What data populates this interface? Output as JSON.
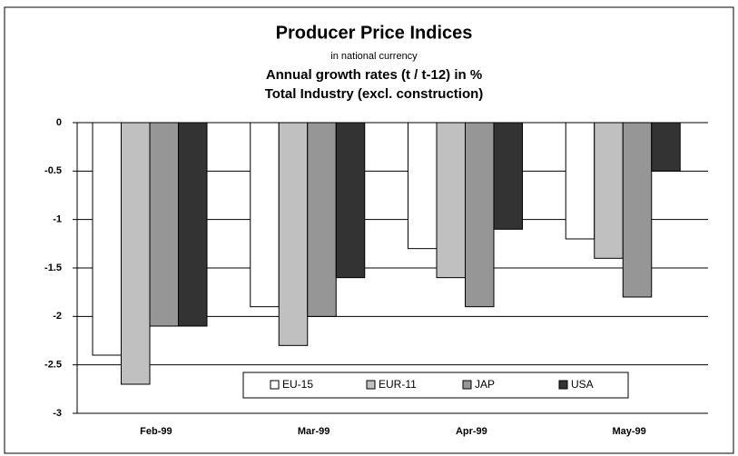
{
  "chart_data": {
    "type": "bar",
    "title": "Producer Price Indices",
    "subtitles": [
      "in national currency",
      "Annual growth rates (t / t-12) in %",
      "Total Industry (excl. construction)"
    ],
    "categories": [
      "Feb-99",
      "Mar-99",
      "Apr-99",
      "May-99"
    ],
    "series": [
      {
        "name": "EU-15",
        "color": "#ffffff",
        "values": [
          -2.4,
          -1.9,
          -1.3,
          -1.2
        ]
      },
      {
        "name": "EUR-11",
        "color": "#c0c0c0",
        "values": [
          -2.7,
          -2.3,
          -1.6,
          -1.4
        ]
      },
      {
        "name": "JAP",
        "color": "#969696",
        "values": [
          -2.1,
          -2.0,
          -1.9,
          -1.8
        ]
      },
      {
        "name": "USA",
        "color": "#333333",
        "values": [
          -2.1,
          -1.6,
          -1.1,
          -0.5
        ]
      }
    ],
    "ylim": [
      -3,
      0
    ],
    "yticks": [
      0,
      -0.5,
      -1,
      -1.5,
      -2,
      -2.5,
      -3
    ],
    "grid": true,
    "legend": "bottom"
  }
}
